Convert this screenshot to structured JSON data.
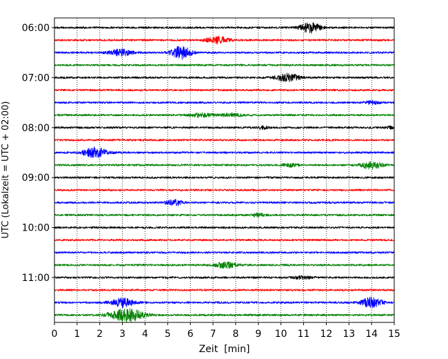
{
  "chart_data": {
    "type": "line",
    "xlabel": "Zeit  [min]",
    "ylabel": "UTC (Lokalzeit = UTC + 02:00)",
    "xlim": [
      0,
      15
    ],
    "x_ticks": [
      "0",
      "1",
      "2",
      "3",
      "4",
      "5",
      "6",
      "7",
      "8",
      "9",
      "10",
      "11",
      "12",
      "13",
      "14",
      "15"
    ],
    "y_ticks": [
      {
        "label": "06:00",
        "row": 0
      },
      {
        "label": "07:00",
        "row": 4
      },
      {
        "label": "08:00",
        "row": 8
      },
      {
        "label": "09:00",
        "row": 12
      },
      {
        "label": "10:00",
        "row": 16
      },
      {
        "label": "11:00",
        "row": 20
      }
    ],
    "grid": "vertical dotted lines at each minute",
    "row_interval_minutes": 15,
    "colors": [
      "#000000",
      "#ff0000",
      "#0000ff",
      "#008000"
    ],
    "traces": [
      {
        "start": "06:00",
        "color": "#000000",
        "events": [
          {
            "t": 11.3,
            "amp": 0.45,
            "w": 0.6
          }
        ]
      },
      {
        "start": "06:15",
        "color": "#ff0000",
        "events": [
          {
            "t": 7.2,
            "amp": 0.3,
            "w": 0.7
          }
        ]
      },
      {
        "start": "06:30",
        "color": "#0000ff",
        "events": [
          {
            "t": 2.9,
            "amp": 0.3,
            "w": 0.7
          },
          {
            "t": 5.6,
            "amp": 0.55,
            "w": 0.6
          }
        ]
      },
      {
        "start": "06:45",
        "color": "#008000",
        "events": []
      },
      {
        "start": "07:00",
        "color": "#000000",
        "events": [
          {
            "t": 10.3,
            "amp": 0.35,
            "w": 0.7
          }
        ]
      },
      {
        "start": "07:15",
        "color": "#ff0000",
        "events": []
      },
      {
        "start": "07:30",
        "color": "#0000ff",
        "events": [
          {
            "t": 14.0,
            "amp": 0.15,
            "w": 0.4
          }
        ]
      },
      {
        "start": "07:45",
        "color": "#008000",
        "events": [
          {
            "t": 6.5,
            "amp": 0.18,
            "w": 0.7
          },
          {
            "t": 7.8,
            "amp": 0.12,
            "w": 0.7
          }
        ]
      },
      {
        "start": "08:00",
        "color": "#000000",
        "events": [
          {
            "t": 9.2,
            "amp": 0.12,
            "w": 0.3
          },
          {
            "t": 14.8,
            "amp": 0.12,
            "w": 0.3
          }
        ]
      },
      {
        "start": "08:15",
        "color": "#ff0000",
        "events": []
      },
      {
        "start": "08:30",
        "color": "#0000ff",
        "events": [
          {
            "t": 1.8,
            "amp": 0.45,
            "w": 0.7
          }
        ]
      },
      {
        "start": "08:45",
        "color": "#008000",
        "events": [
          {
            "t": 10.4,
            "amp": 0.12,
            "w": 0.5
          },
          {
            "t": 14.0,
            "amp": 0.35,
            "w": 0.6
          }
        ]
      },
      {
        "start": "09:00",
        "color": "#000000",
        "events": []
      },
      {
        "start": "09:15",
        "color": "#ff0000",
        "events": []
      },
      {
        "start": "09:30",
        "color": "#0000ff",
        "events": [
          {
            "t": 5.3,
            "amp": 0.25,
            "w": 0.5
          }
        ]
      },
      {
        "start": "09:45",
        "color": "#008000",
        "events": [
          {
            "t": 9.0,
            "amp": 0.15,
            "w": 0.4
          }
        ]
      },
      {
        "start": "10:00",
        "color": "#000000",
        "events": []
      },
      {
        "start": "10:15",
        "color": "#ff0000",
        "events": []
      },
      {
        "start": "10:30",
        "color": "#0000ff",
        "events": []
      },
      {
        "start": "10:45",
        "color": "#008000",
        "events": [
          {
            "t": 7.6,
            "amp": 0.25,
            "w": 0.7
          }
        ]
      },
      {
        "start": "11:00",
        "color": "#000000",
        "events": [
          {
            "t": 11.0,
            "amp": 0.12,
            "w": 0.6
          }
        ]
      },
      {
        "start": "11:15",
        "color": "#ff0000",
        "events": []
      },
      {
        "start": "11:30",
        "color": "#0000ff",
        "events": [
          {
            "t": 3.0,
            "amp": 0.4,
            "w": 0.7
          },
          {
            "t": 14.0,
            "amp": 0.45,
            "w": 0.6
          }
        ]
      },
      {
        "start": "11:45",
        "color": "#008000",
        "events": [
          {
            "t": 3.2,
            "amp": 0.6,
            "w": 1.0
          }
        ]
      }
    ]
  }
}
